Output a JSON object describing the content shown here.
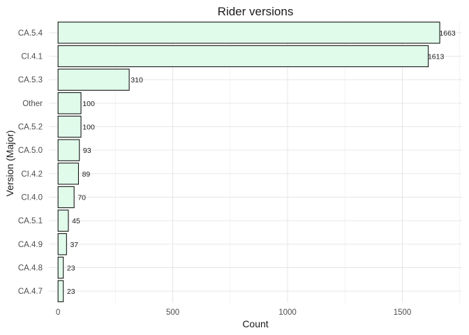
{
  "chart_data": {
    "type": "bar",
    "orientation": "horizontal",
    "title": "Rider versions",
    "xlabel": "Count",
    "ylabel": "Version (Major)",
    "categories": [
      "CA.5.4",
      "CI.4.1",
      "CA.5.3",
      "Other",
      "CA.5.2",
      "CA.5.0",
      "CI.4.2",
      "CI.4.0",
      "CA.5.1",
      "CA.4.9",
      "CA.4.8",
      "CA.4.7"
    ],
    "values": [
      1663,
      1613,
      310,
      100,
      100,
      93,
      89,
      70,
      45,
      37,
      23,
      23
    ],
    "xlim": [
      -40,
      1760
    ],
    "xticks": [
      0,
      500,
      1000,
      1500
    ],
    "grid": true,
    "legend": "none",
    "colors": {
      "bar_fill": "#e0fbea",
      "bar_stroke": "#000000"
    }
  }
}
